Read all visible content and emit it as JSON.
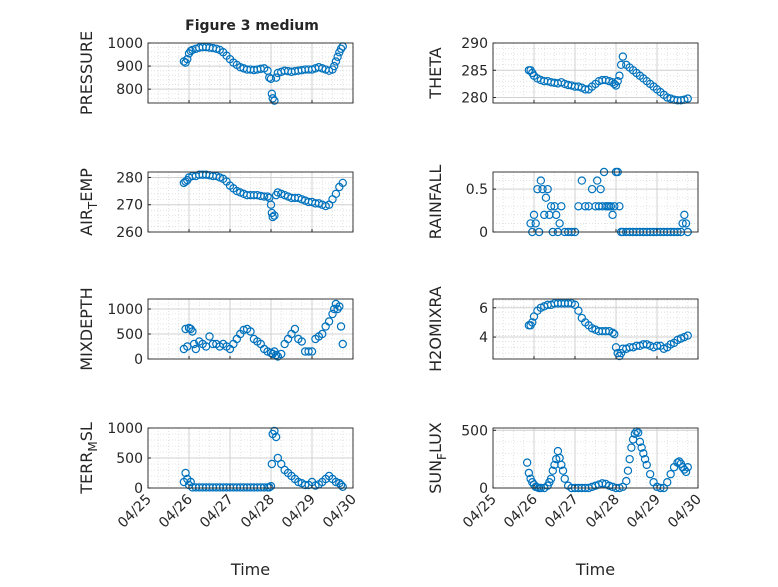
{
  "figure": {
    "title": "Figure 3 medium",
    "xlabel": "Time",
    "marker_color": "#0072BD",
    "axis_color": "#262626",
    "grid_color": "#dcdcdc",
    "date_ticks": [
      "04/25",
      "04/26",
      "04/27",
      "04/28",
      "04/29",
      "04/30"
    ]
  },
  "chart_data": [
    {
      "type": "scatter",
      "ylabel": "PRESSURE",
      "ylim": [
        740,
        1000
      ],
      "yticks": [
        {
          "v": 800,
          "t": "800"
        },
        {
          "v": 900,
          "t": "900"
        },
        {
          "v": 1000,
          "t": "1000"
        }
      ],
      "grid": true,
      "x": [
        "04/25 21:00",
        "04/25 22:00",
        "04/25 23:00",
        "04/26 00:00",
        "04/26 01:00",
        "04/26 02:00",
        "04/26 04:00",
        "04/26 06:00",
        "04/26 08:00",
        "04/26 10:00",
        "04/26 12:00",
        "04/26 14:00",
        "04/26 16:00",
        "04/26 18:00",
        "04/26 20:00",
        "04/26 22:00",
        "04/27 00:00",
        "04/27 02:00",
        "04/27 04:00",
        "04/27 06:00",
        "04/27 08:00",
        "04/27 10:00",
        "04/27 12:00",
        "04/27 14:00",
        "04/27 16:00",
        "04/27 18:00",
        "04/27 20:00",
        "04/27 22:00",
        "04/27 23:00",
        "04/28 00:00",
        "04/28 00:30",
        "04/28 01:00",
        "04/28 02:00",
        "04/28 03:00",
        "04/28 04:00",
        "04/28 06:00",
        "04/28 08:00",
        "04/28 10:00",
        "04/28 12:00",
        "04/28 14:00",
        "04/28 16:00",
        "04/28 18:00",
        "04/28 20:00",
        "04/28 22:00",
        "04/29 00:00",
        "04/29 02:00",
        "04/29 04:00",
        "04/29 06:00",
        "04/29 08:00",
        "04/29 10:00",
        "04/29 12:00",
        "04/29 13:00",
        "04/29 14:00",
        "04/29 15:00",
        "04/29 16:00",
        "04/29 17:00",
        "04/29 18:00"
      ],
      "y": [
        920,
        915,
        930,
        955,
        965,
        970,
        975,
        980,
        982,
        982,
        980,
        978,
        975,
        970,
        960,
        945,
        930,
        915,
        905,
        895,
        890,
        885,
        885,
        883,
        885,
        888,
        890,
        880,
        850,
        845,
        780,
        760,
        750,
        850,
        870,
        875,
        880,
        878,
        875,
        878,
        880,
        882,
        885,
        885,
        885,
        890,
        895,
        890,
        885,
        880,
        885,
        900,
        920,
        940,
        960,
        975,
        985
      ]
    },
    {
      "type": "scatter",
      "ylabel": "THETA",
      "ylim": [
        279,
        290
      ],
      "yticks": [
        {
          "v": 280,
          "t": "280"
        },
        {
          "v": 285,
          "t": "285"
        },
        {
          "v": 290,
          "t": "290"
        }
      ],
      "grid": true,
      "x": [
        "04/25 21:00",
        "04/25 22:00",
        "04/25 23:00",
        "04/26 00:00",
        "04/26 02:00",
        "04/26 04:00",
        "04/26 06:00",
        "04/26 08:00",
        "04/26 10:00",
        "04/26 12:00",
        "04/26 14:00",
        "04/26 16:00",
        "04/26 18:00",
        "04/26 20:00",
        "04/26 22:00",
        "04/27 00:00",
        "04/27 02:00",
        "04/27 04:00",
        "04/27 06:00",
        "04/27 08:00",
        "04/27 10:00",
        "04/27 12:00",
        "04/27 14:00",
        "04/27 16:00",
        "04/27 18:00",
        "04/27 20:00",
        "04/27 22:00",
        "04/27 23:00",
        "04/28 00:00",
        "04/28 01:00",
        "04/28 02:00",
        "04/28 03:00",
        "04/28 04:00",
        "04/28 06:00",
        "04/28 08:00",
        "04/28 10:00",
        "04/28 12:00",
        "04/28 14:00",
        "04/28 16:00",
        "04/28 18:00",
        "04/28 20:00",
        "04/28 22:00",
        "04/29 00:00",
        "04/29 02:00",
        "04/29 04:00",
        "04/29 06:00",
        "04/29 08:00",
        "04/29 10:00",
        "04/29 12:00",
        "04/29 14:00",
        "04/29 16:00",
        "04/29 18:00"
      ],
      "y": [
        285,
        285,
        284.5,
        284,
        283.5,
        283.2,
        283,
        283,
        282.8,
        282.7,
        282.6,
        282.8,
        282.5,
        282.3,
        282.2,
        282,
        282,
        281.8,
        281.5,
        281.5,
        282,
        282.5,
        283,
        283.2,
        283.2,
        283,
        282.8,
        282.5,
        282.2,
        283,
        284,
        286,
        287.5,
        286,
        285.5,
        285,
        284.5,
        284,
        283.5,
        283,
        282.5,
        282,
        281.5,
        281,
        280.5,
        280,
        279.8,
        279.6,
        279.5,
        279.5,
        279.6,
        279.8
      ]
    },
    {
      "type": "scatter",
      "ylabel": "AIR_TEMP",
      "ylabel_parts": {
        "base": "AIR",
        "sub": "T",
        "rest": "EMP"
      },
      "ylim": [
        260,
        282
      ],
      "yticks": [
        {
          "v": 260,
          "t": "260"
        },
        {
          "v": 270,
          "t": "270"
        },
        {
          "v": 280,
          "t": "280"
        }
      ],
      "grid": true,
      "x": [
        "04/25 21:00",
        "04/25 22:00",
        "04/25 23:00",
        "04/26 00:00",
        "04/26 02:00",
        "04/26 04:00",
        "04/26 06:00",
        "04/26 08:00",
        "04/26 10:00",
        "04/26 12:00",
        "04/26 14:00",
        "04/26 16:00",
        "04/26 18:00",
        "04/26 20:00",
        "04/26 22:00",
        "04/27 00:00",
        "04/27 02:00",
        "04/27 04:00",
        "04/27 06:00",
        "04/27 08:00",
        "04/27 10:00",
        "04/27 12:00",
        "04/27 14:00",
        "04/27 16:00",
        "04/27 18:00",
        "04/27 20:00",
        "04/27 22:00",
        "04/27 23:00",
        "04/28 00:00",
        "04/28 00:30",
        "04/28 01:00",
        "04/28 02:00",
        "04/28 03:00",
        "04/28 04:00",
        "04/28 06:00",
        "04/28 08:00",
        "04/28 10:00",
        "04/28 12:00",
        "04/28 14:00",
        "04/28 16:00",
        "04/28 18:00",
        "04/28 20:00",
        "04/28 22:00",
        "04/29 00:00",
        "04/29 02:00",
        "04/29 04:00",
        "04/29 06:00",
        "04/29 08:00",
        "04/29 10:00",
        "04/29 12:00",
        "04/29 14:00",
        "04/29 16:00",
        "04/29 18:00"
      ],
      "y": [
        278,
        278.5,
        279,
        280,
        280.5,
        280.5,
        281,
        281,
        281,
        280.8,
        280.5,
        280.5,
        280,
        279.5,
        278.5,
        277,
        276,
        275,
        274.5,
        274,
        273.5,
        273.5,
        273.5,
        273.5,
        273.2,
        273,
        273,
        272.5,
        270,
        267,
        265.5,
        266,
        273.5,
        274.5,
        274,
        273.5,
        273,
        272.5,
        272.5,
        272.5,
        272,
        271.5,
        271,
        271,
        270.5,
        270.5,
        270,
        269.5,
        270,
        272,
        274,
        276.5,
        278
      ]
    },
    {
      "type": "scatter",
      "ylabel": "RAINFALL",
      "ylim": [
        0,
        0.7
      ],
      "yticks": [
        {
          "v": 0,
          "t": "0"
        },
        {
          "v": 0.5,
          "t": "0.5"
        }
      ],
      "grid": true,
      "x": [
        "04/25 22:00",
        "04/25 23:00",
        "04/26 00:00",
        "04/26 01:00",
        "04/26 02:00",
        "04/26 03:00",
        "04/26 04:00",
        "04/26 05:00",
        "04/26 06:00",
        "04/26 07:00",
        "04/26 08:00",
        "04/26 09:00",
        "04/26 10:00",
        "04/26 11:00",
        "04/26 12:00",
        "04/26 13:00",
        "04/26 14:00",
        "04/26 15:00",
        "04/26 16:00",
        "04/26 18:00",
        "04/26 20:00",
        "04/26 22:00",
        "04/27 00:00",
        "04/27 02:00",
        "04/27 04:00",
        "04/27 06:00",
        "04/27 08:00",
        "04/27 10:00",
        "04/27 12:00",
        "04/27 13:00",
        "04/27 14:00",
        "04/27 15:00",
        "04/27 16:00",
        "04/27 17:00",
        "04/27 18:00",
        "04/27 19:00",
        "04/27 20:00",
        "04/27 21:00",
        "04/27 22:00",
        "04/27 23:00",
        "04/28 00:00",
        "04/28 01:00",
        "04/28 02:00",
        "04/28 03:00",
        "04/28 04:00",
        "04/28 06:00",
        "04/28 08:00",
        "04/28 10:00",
        "04/28 12:00",
        "04/28 14:00",
        "04/28 16:00",
        "04/28 18:00",
        "04/28 20:00",
        "04/28 22:00",
        "04/29 00:00",
        "04/29 02:00",
        "04/29 04:00",
        "04/29 06:00",
        "04/29 08:00",
        "04/29 10:00",
        "04/29 12:00",
        "04/29 14:00",
        "04/29 15:00",
        "04/29 16:00",
        "04/29 17:00",
        "04/29 18:00"
      ],
      "y": [
        0.1,
        0.0,
        0.2,
        0.1,
        0.5,
        0.0,
        0.6,
        0.5,
        0.2,
        0.4,
        0.5,
        0.2,
        0.3,
        0.0,
        0.3,
        0.2,
        0.0,
        0.1,
        0.3,
        0.0,
        0.0,
        0.0,
        0.0,
        0.3,
        0.6,
        0.3,
        0.3,
        0.5,
        0.3,
        0.6,
        0.3,
        0.5,
        0.3,
        0.7,
        0.3,
        0.3,
        0.3,
        0.3,
        0.2,
        0.3,
        0.7,
        0.7,
        0.3,
        0.0,
        0.0,
        0.0,
        0.0,
        0.0,
        0.0,
        0.0,
        0.0,
        0.0,
        0.0,
        0.0,
        0.0,
        0.0,
        0.0,
        0.0,
        0.0,
        0.0,
        0.0,
        0.0,
        0.1,
        0.2,
        0.1,
        0.0
      ]
    },
    {
      "type": "scatter",
      "ylabel": "MIXDEPTH",
      "ylim": [
        0,
        1200
      ],
      "yticks": [
        {
          "v": 0,
          "t": "0"
        },
        {
          "v": 500,
          "t": "500"
        },
        {
          "v": 1000,
          "t": "1000"
        }
      ],
      "grid": true,
      "x": [
        "04/25 21:00",
        "04/25 22:00",
        "04/25 23:00",
        "04/26 00:00",
        "04/26 01:00",
        "04/26 02:00",
        "04/26 03:00",
        "04/26 04:00",
        "04/26 06:00",
        "04/26 08:00",
        "04/26 10:00",
        "04/26 12:00",
        "04/26 14:00",
        "04/26 16:00",
        "04/26 18:00",
        "04/26 20:00",
        "04/26 22:00",
        "04/27 00:00",
        "04/27 02:00",
        "04/27 04:00",
        "04/27 06:00",
        "04/27 08:00",
        "04/27 10:00",
        "04/27 12:00",
        "04/27 14:00",
        "04/27 16:00",
        "04/27 18:00",
        "04/27 20:00",
        "04/27 22:00",
        "04/28 00:00",
        "04/28 01:00",
        "04/28 02:00",
        "04/28 03:00",
        "04/28 04:00",
        "04/28 06:00",
        "04/28 08:00",
        "04/28 10:00",
        "04/28 12:00",
        "04/28 14:00",
        "04/28 16:00",
        "04/28 18:00",
        "04/28 20:00",
        "04/28 22:00",
        "04/29 00:00",
        "04/29 02:00",
        "04/29 04:00",
        "04/29 06:00",
        "04/29 08:00",
        "04/29 10:00",
        "04/29 12:00",
        "04/29 13:00",
        "04/29 14:00",
        "04/29 15:00",
        "04/29 16:00",
        "04/29 17:00",
        "04/29 18:00"
      ],
      "y": [
        200,
        600,
        250,
        620,
        600,
        550,
        300,
        200,
        350,
        300,
        250,
        450,
        300,
        300,
        250,
        300,
        250,
        200,
        300,
        400,
        500,
        580,
        600,
        550,
        400,
        350,
        300,
        200,
        150,
        120,
        100,
        150,
        80,
        50,
        100,
        300,
        400,
        500,
        600,
        400,
        350,
        150,
        150,
        150,
        400,
        450,
        500,
        650,
        750,
        900,
        1000,
        1100,
        1000,
        1050,
        650,
        300
      ]
    },
    {
      "type": "scatter",
      "ylabel": "H2OMIXRA",
      "ylim": [
        2.5,
        6.6
      ],
      "yticks": [
        {
          "v": 4,
          "t": "4"
        },
        {
          "v": 6,
          "t": "6"
        }
      ],
      "grid": true,
      "x": [
        "04/25 21:00",
        "04/25 22:00",
        "04/25 23:00",
        "04/26 00:00",
        "04/26 02:00",
        "04/26 04:00",
        "04/26 06:00",
        "04/26 08:00",
        "04/26 10:00",
        "04/26 12:00",
        "04/26 14:00",
        "04/26 16:00",
        "04/26 18:00",
        "04/26 20:00",
        "04/26 22:00",
        "04/27 00:00",
        "04/27 02:00",
        "04/27 04:00",
        "04/27 06:00",
        "04/27 08:00",
        "04/27 10:00",
        "04/27 12:00",
        "04/27 14:00",
        "04/27 16:00",
        "04/27 18:00",
        "04/27 20:00",
        "04/27 22:00",
        "04/27 23:00",
        "04/28 00:00",
        "04/28 01:00",
        "04/28 02:00",
        "04/28 03:00",
        "04/28 04:00",
        "04/28 06:00",
        "04/28 08:00",
        "04/28 10:00",
        "04/28 12:00",
        "04/28 14:00",
        "04/28 16:00",
        "04/28 18:00",
        "04/28 20:00",
        "04/28 22:00",
        "04/29 00:00",
        "04/29 02:00",
        "04/29 04:00",
        "04/29 06:00",
        "04/29 08:00",
        "04/29 10:00",
        "04/29 12:00",
        "04/29 14:00",
        "04/29 16:00",
        "04/29 18:00"
      ],
      "y": [
        4.8,
        4.8,
        5.0,
        5.4,
        5.8,
        6.0,
        6.1,
        6.2,
        6.2,
        6.3,
        6.3,
        6.3,
        6.3,
        6.3,
        6.3,
        6.2,
        5.8,
        5.3,
        5.0,
        4.8,
        4.6,
        4.5,
        4.4,
        4.4,
        4.4,
        4.4,
        4.3,
        4.2,
        3.3,
        2.9,
        2.7,
        2.9,
        3.2,
        3.2,
        3.3,
        3.3,
        3.4,
        3.4,
        3.5,
        3.5,
        3.4,
        3.3,
        3.4,
        3.4,
        3.2,
        3.3,
        3.5,
        3.6,
        3.8,
        3.9,
        4.0,
        4.1
      ]
    },
    {
      "type": "scatter",
      "ylabel": "TERR_MSL",
      "ylabel_parts": {
        "base": "TERR",
        "sub": "M",
        "rest": "SL"
      },
      "ylim": [
        0,
        1000
      ],
      "yticks": [
        {
          "v": 0,
          "t": "0"
        },
        {
          "v": 500,
          "t": "500"
        },
        {
          "v": 1000,
          "t": "1000"
        }
      ],
      "grid": true,
      "x": [
        "04/25 21:00",
        "04/25 22:00",
        "04/25 23:00",
        "04/26 00:00",
        "04/26 01:00",
        "04/26 02:00",
        "04/26 04:00",
        "04/26 06:00",
        "04/26 08:00",
        "04/26 10:00",
        "04/26 12:00",
        "04/26 14:00",
        "04/26 16:00",
        "04/26 18:00",
        "04/26 20:00",
        "04/26 22:00",
        "04/27 00:00",
        "04/27 02:00",
        "04/27 04:00",
        "04/27 06:00",
        "04/27 08:00",
        "04/27 10:00",
        "04/27 12:00",
        "04/27 14:00",
        "04/27 16:00",
        "04/27 18:00",
        "04/27 20:00",
        "04/27 22:00",
        "04/27 23:00",
        "04/28 00:00",
        "04/28 00:30",
        "04/28 01:00",
        "04/28 02:00",
        "04/28 03:00",
        "04/28 04:00",
        "04/28 06:00",
        "04/28 08:00",
        "04/28 10:00",
        "04/28 12:00",
        "04/28 14:00",
        "04/28 16:00",
        "04/28 18:00",
        "04/28 20:00",
        "04/28 22:00",
        "04/29 00:00",
        "04/29 02:00",
        "04/29 04:00",
        "04/29 06:00",
        "04/29 08:00",
        "04/29 10:00",
        "04/29 12:00",
        "04/29 14:00",
        "04/29 16:00",
        "04/29 17:00",
        "04/29 18:00"
      ],
      "y": [
        100,
        250,
        150,
        50,
        100,
        10,
        10,
        10,
        10,
        10,
        10,
        10,
        10,
        10,
        10,
        10,
        10,
        10,
        10,
        10,
        10,
        10,
        10,
        10,
        10,
        10,
        10,
        10,
        10,
        30,
        400,
        900,
        950,
        850,
        500,
        400,
        300,
        250,
        200,
        150,
        100,
        80,
        50,
        50,
        100,
        40,
        60,
        100,
        150,
        200,
        150,
        100,
        80,
        50,
        20
      ]
    },
    {
      "type": "scatter",
      "ylabel": "SUN_FLUX",
      "ylabel_parts": {
        "base": "SUN",
        "sub": "F",
        "rest": "LUX"
      },
      "ylim": [
        0,
        520
      ],
      "yticks": [
        {
          "v": 0,
          "t": "0"
        },
        {
          "v": 500,
          "t": "500"
        }
      ],
      "grid": true,
      "x": [
        "04/25 20:00",
        "04/25 21:00",
        "04/25 22:00",
        "04/25 23:00",
        "04/26 00:00",
        "04/26 01:00",
        "04/26 02:00",
        "04/26 03:00",
        "04/26 04:00",
        "04/26 06:00",
        "04/26 08:00",
        "04/26 09:00",
        "04/26 10:00",
        "04/26 11:00",
        "04/26 12:00",
        "04/26 13:00",
        "04/26 14:00",
        "04/26 15:00",
        "04/26 16:00",
        "04/26 17:00",
        "04/26 18:00",
        "04/26 20:00",
        "04/26 22:00",
        "04/27 00:00",
        "04/27 02:00",
        "04/27 04:00",
        "04/27 06:00",
        "04/27 08:00",
        "04/27 10:00",
        "04/27 12:00",
        "04/27 14:00",
        "04/27 16:00",
        "04/27 18:00",
        "04/27 20:00",
        "04/27 22:00",
        "04/28 00:00",
        "04/28 02:00",
        "04/28 04:00",
        "04/28 06:00",
        "04/28 07:00",
        "04/28 08:00",
        "04/28 09:00",
        "04/28 10:00",
        "04/28 11:00",
        "04/28 12:00",
        "04/28 13:00",
        "04/28 14:00",
        "04/28 15:00",
        "04/28 16:00",
        "04/28 17:00",
        "04/28 18:00",
        "04/28 20:00",
        "04/28 22:00",
        "04/29 00:00",
        "04/29 02:00",
        "04/29 04:00",
        "04/29 06:00",
        "04/29 08:00",
        "04/29 10:00",
        "04/29 12:00",
        "04/29 13:00",
        "04/29 14:00",
        "04/29 15:00",
        "04/29 16:00",
        "04/29 17:00",
        "04/29 18:00"
      ],
      "y": [
        220,
        130,
        80,
        50,
        30,
        10,
        5,
        0,
        0,
        0,
        20,
        50,
        80,
        150,
        200,
        250,
        320,
        260,
        200,
        150,
        80,
        20,
        0,
        0,
        0,
        0,
        0,
        0,
        10,
        20,
        30,
        40,
        35,
        20,
        10,
        0,
        0,
        10,
        60,
        150,
        250,
        350,
        420,
        470,
        490,
        480,
        400,
        350,
        300,
        250,
        200,
        120,
        50,
        10,
        0,
        0,
        50,
        120,
        180,
        220,
        230,
        210,
        180,
        160,
        140,
        180
      ]
    }
  ]
}
